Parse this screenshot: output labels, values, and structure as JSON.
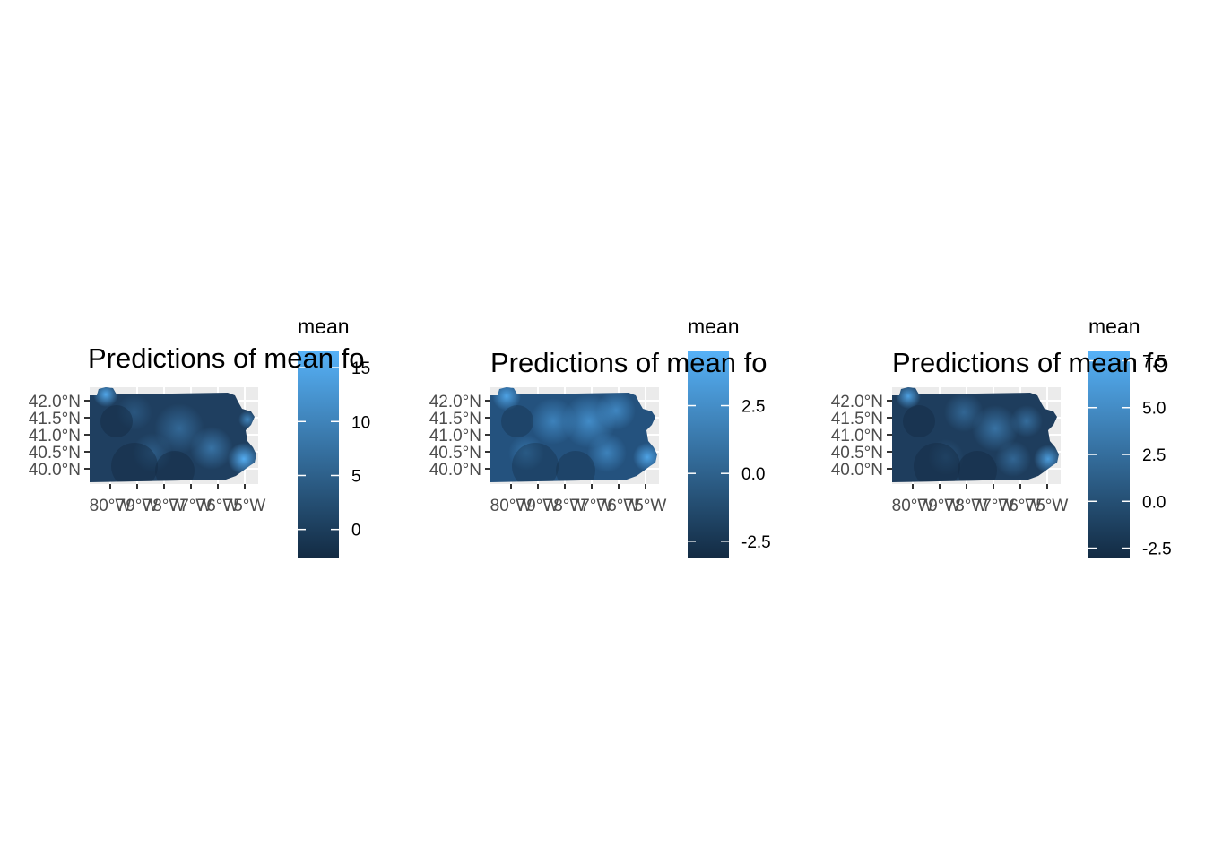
{
  "figure": {
    "colors": {
      "panel_background": "#ebebeb",
      "grid_line": "#ffffff",
      "tick_mark": "#333333",
      "tick_label": "#4d4d4d",
      "gradient_low": "#132b43",
      "gradient_high": "#56b1f7"
    }
  },
  "chart_data": [
    {
      "type": "heatmap",
      "title": "Predictions of mean fo",
      "y_ticks": [
        "42.0°N",
        "41.5°N",
        "41.0°N",
        "40.5°N",
        "40.0°N"
      ],
      "x_ticks": [
        "80°W",
        "79°W",
        "78°W",
        "77°W",
        "76°W",
        "75°W"
      ],
      "legend": {
        "title": "mean",
        "labels": [
          "15",
          "10",
          "5",
          "0"
        ],
        "values": [
          15,
          10,
          5,
          0
        ],
        "range": [
          -2.6,
          16.5
        ]
      }
    },
    {
      "type": "heatmap",
      "title": "Predictions of mean fo",
      "y_ticks": [
        "42.0°N",
        "41.5°N",
        "41.0°N",
        "40.5°N",
        "40.0°N"
      ],
      "x_ticks": [
        "80°W",
        "79°W",
        "78°W",
        "77°W",
        "76°W",
        "75°W"
      ],
      "legend": {
        "title": "mean",
        "labels": [
          "2.5",
          "0.0",
          "-2.5"
        ],
        "values": [
          2.5,
          0.0,
          -2.5
        ],
        "range": [
          -3.1,
          4.5
        ]
      }
    },
    {
      "type": "heatmap",
      "title": "Predictions of mean fo",
      "y_ticks": [
        "42.0°N",
        "41.5°N",
        "41.0°N",
        "40.5°N",
        "40.0°N"
      ],
      "x_ticks": [
        "80°W",
        "79°W",
        "78°W",
        "77°W",
        "76°W",
        "75°W"
      ],
      "legend": {
        "title": "mean",
        "labels": [
          "7.5",
          "5.0",
          "2.5",
          "0.0",
          "-2.5"
        ],
        "values": [
          7.5,
          5.0,
          2.5,
          0.0,
          -2.5
        ],
        "range": [
          -3.0,
          8.0
        ]
      }
    }
  ]
}
